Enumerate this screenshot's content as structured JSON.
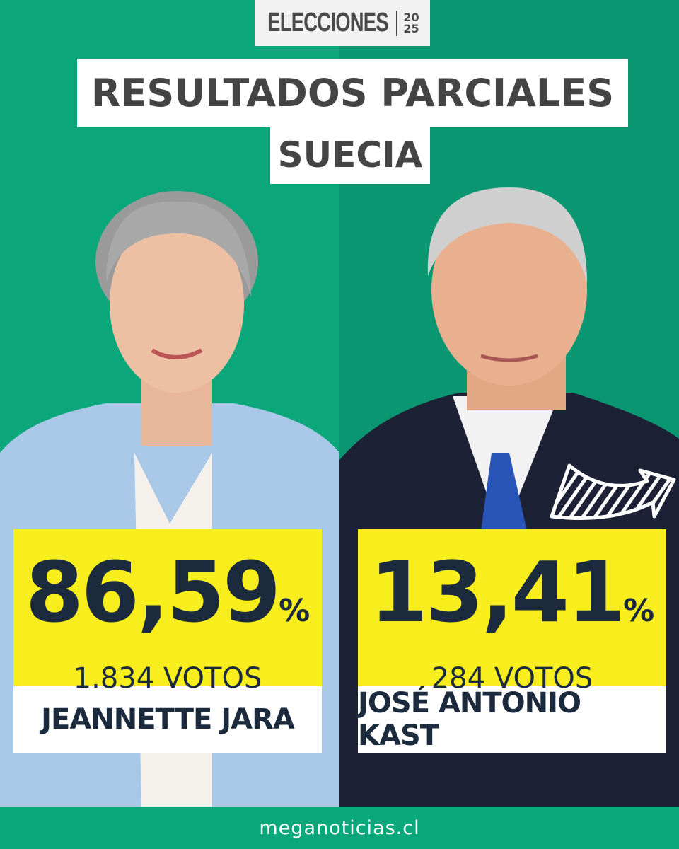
{
  "logo": {
    "word": "ELECCIONES",
    "year_top": "20",
    "year_bottom": "25"
  },
  "title": {
    "line1": "RESULTADOS PARCIALES",
    "line2": "SUECIA"
  },
  "candidates": [
    {
      "percent": "86,59",
      "percent_sign": "%",
      "votes": "1.834 VOTOS",
      "name": "JEANNETTE JARA"
    },
    {
      "percent": "13,41",
      "percent_sign": "%",
      "votes": "284 VOTOS",
      "name": "JOSÉ ANTONIO KAST"
    }
  ],
  "footer": {
    "site": "meganoticias.cl"
  },
  "colors": {
    "green": "#0ba67a",
    "yellow": "#f8ee1e",
    "navy": "#1b2a3d"
  }
}
